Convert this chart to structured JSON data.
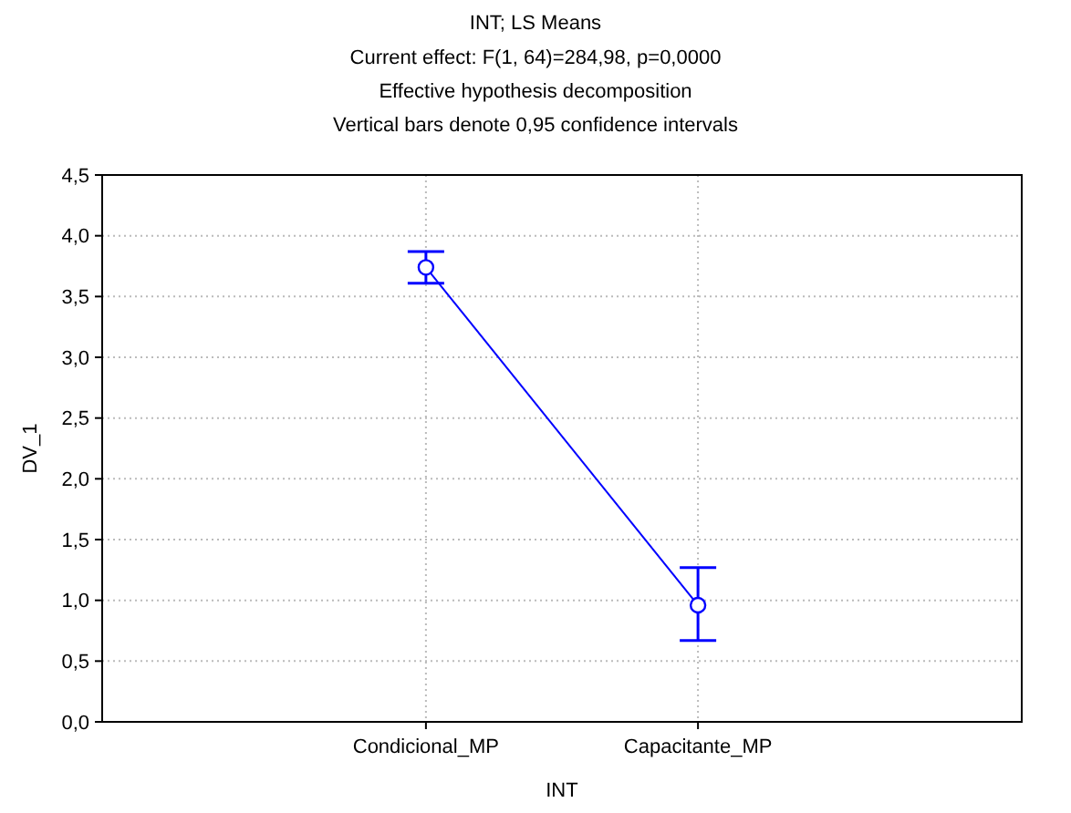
{
  "chart_data": {
    "type": "line",
    "title": "INT; LS Means",
    "subtitle": "Current effect: F(1, 64)=284,98, p=0,0000\nEffective hypothesis decomposition\nVertical bars denote 0,95 confidence intervals",
    "xlabel": "INT",
    "ylabel": "DV_1",
    "categories": [
      "Condicional_MP",
      "Capacitante_MP"
    ],
    "series": [
      {
        "color": "#0000ff",
        "values": [
          3.74,
          0.96
        ],
        "errors": [
          [
            3.61,
            3.87
          ],
          [
            0.67,
            1.27
          ]
        ]
      }
    ],
    "ylim": [
      0,
      4.5
    ],
    "yticks": [
      {
        "value": 0,
        "label": "0,0"
      },
      {
        "value": 0.5,
        "label": "0,5"
      },
      {
        "value": 1,
        "label": "1,0"
      },
      {
        "value": 1.5,
        "label": "1,5"
      },
      {
        "value": 2,
        "label": "2,0"
      },
      {
        "value": 2.5,
        "label": "2,5"
      },
      {
        "value": 3,
        "label": "3,0"
      },
      {
        "value": 3.5,
        "label": "3,5"
      },
      {
        "value": 4,
        "label": "4,0"
      },
      {
        "value": 4.5,
        "label": "4,5"
      }
    ],
    "grid": true,
    "marker": "circle",
    "line_style": "solid"
  }
}
